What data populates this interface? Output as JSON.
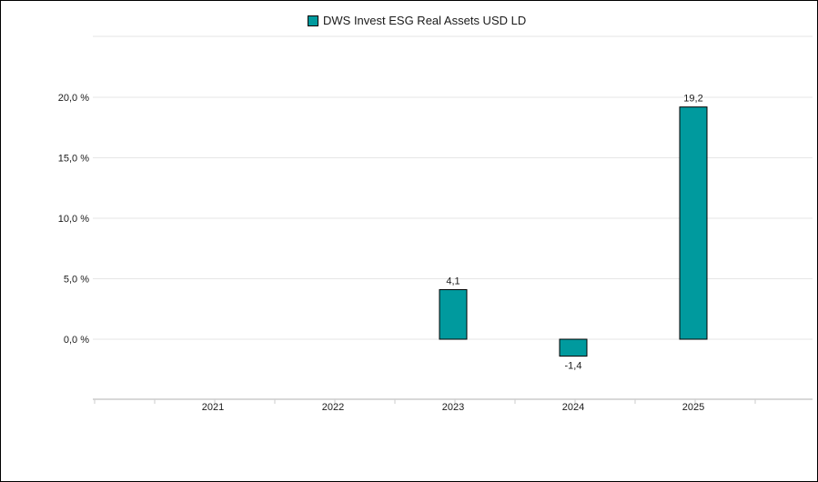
{
  "chart_data": {
    "type": "bar",
    "categories": [
      "2021",
      "2022",
      "2023",
      "2024",
      "2025"
    ],
    "series": [
      {
        "name": "DWS Invest ESG Real Assets USD LD",
        "values": [
          null,
          null,
          4.1,
          -1.4,
          19.2
        ],
        "color": "#009a9e"
      }
    ],
    "data_labels": [
      "",
      "",
      "4,1",
      "-1,4",
      "19,2"
    ],
    "ylim": [
      -5,
      25
    ],
    "yticks": [
      0,
      5,
      10,
      15,
      20
    ],
    "ytick_labels": [
      "0,0 %",
      "5,0 %",
      "10,0 %",
      "15,0 %",
      "20,0 %"
    ],
    "grid": true,
    "legend_position": "top"
  }
}
